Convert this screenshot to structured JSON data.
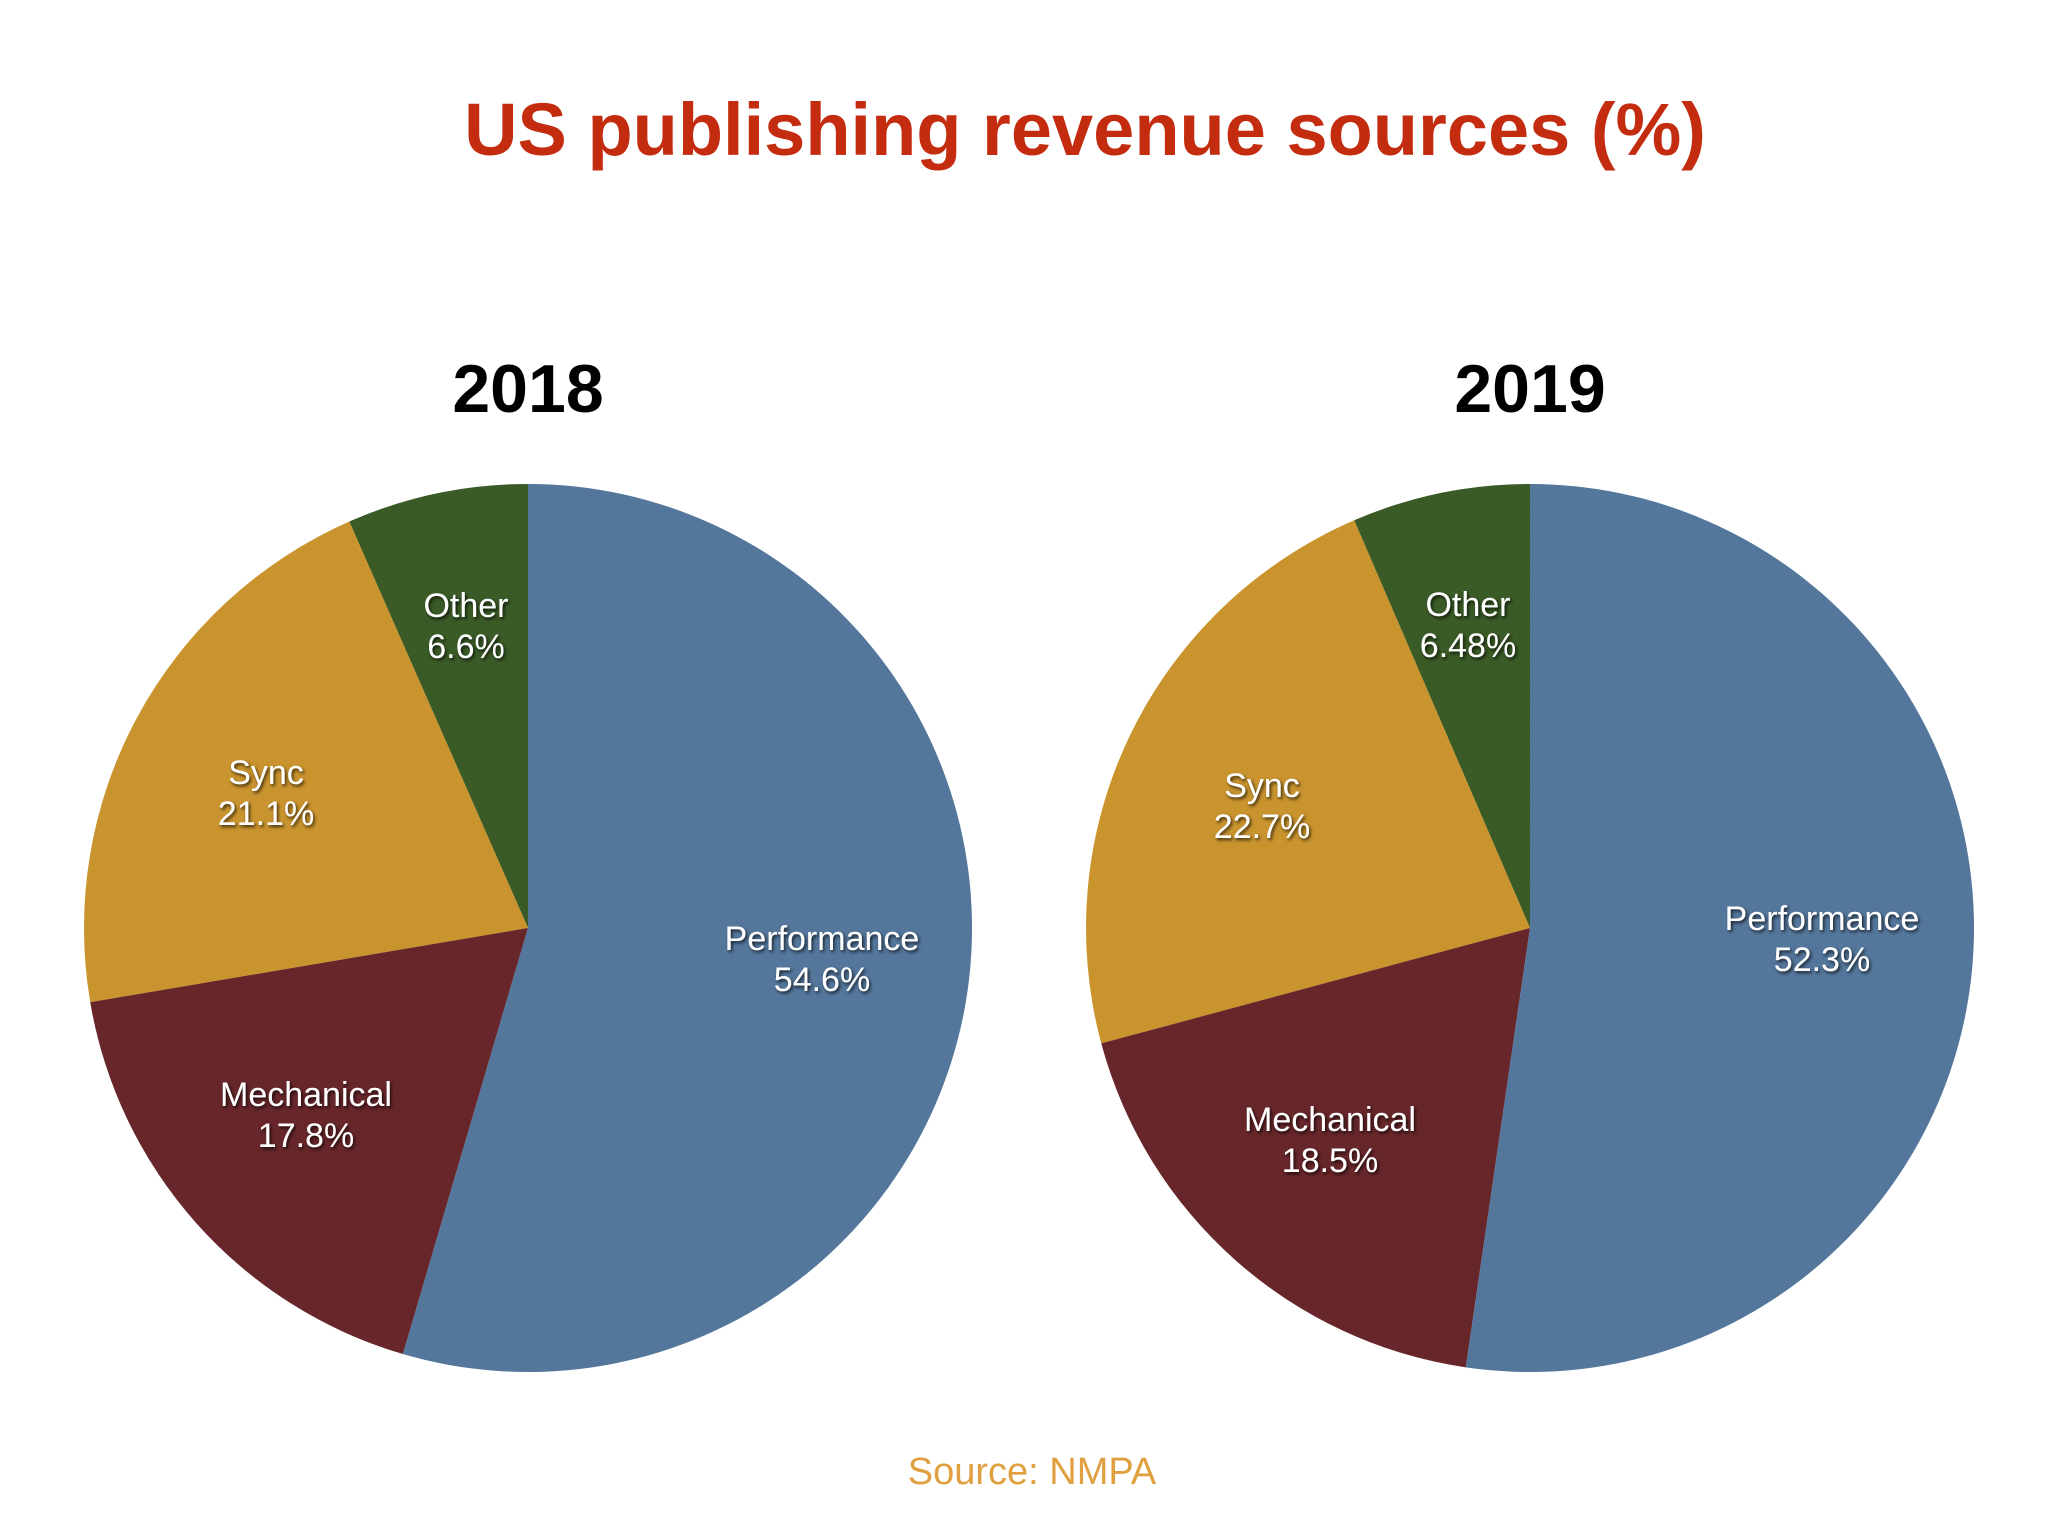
{
  "title": "US publishing revenue sources (%)",
  "source": "Source: NMPA",
  "colors": {
    "title": "#c42c10",
    "source": "#e0a040",
    "year_title": "#000000",
    "label_text": "#ffffff"
  },
  "chart_data": [
    {
      "type": "pie",
      "title": "2018",
      "start_angle": "12 o'clock",
      "direction": "clockwise",
      "slices": [
        {
          "label": "Performance",
          "value": 54.6,
          "value_label": "54.6%",
          "color": "#587ca2"
        },
        {
          "label": "Mechanical",
          "value": 17.8,
          "value_label": "17.8%",
          "color": "#6c2b2e"
        },
        {
          "label": "Sync",
          "value": 21.1,
          "value_label": "21.1%",
          "color": "#d19a33"
        },
        {
          "label": "Other",
          "value": 6.6,
          "value_label": "6.6%",
          "color": "#3d5f2c"
        }
      ]
    },
    {
      "type": "pie",
      "title": "2019",
      "start_angle": "12 o'clock",
      "direction": "clockwise",
      "slices": [
        {
          "label": "Performance",
          "value": 52.3,
          "value_label": "52.3%",
          "color": "#587ca2"
        },
        {
          "label": "Mechanical",
          "value": 18.5,
          "value_label": "18.5%",
          "color": "#6c2b2e"
        },
        {
          "label": "Sync",
          "value": 22.7,
          "value_label": "22.7%",
          "color": "#d19a33"
        },
        {
          "label": "Other",
          "value": 6.48,
          "value_label": "6.48%",
          "color": "#3d5f2c"
        }
      ]
    }
  ]
}
